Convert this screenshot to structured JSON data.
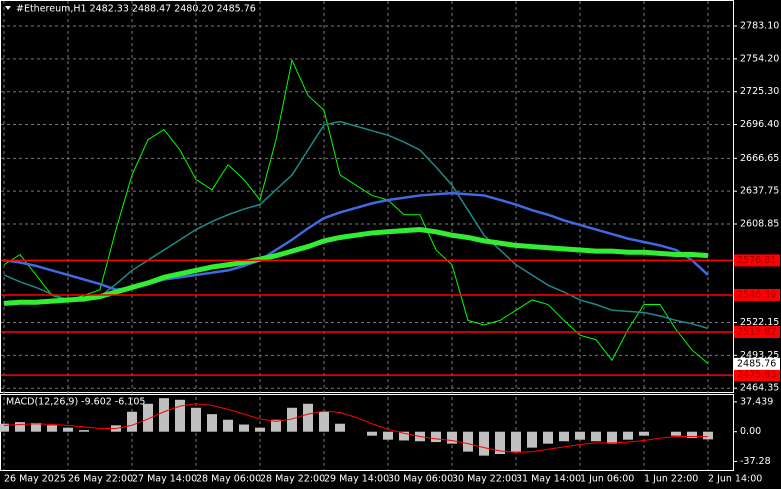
{
  "chart_data": [
    {
      "type": "line",
      "title": "#Ethereum,H1  2482.33 2488.47 2480.20 2485.76",
      "categories": [
        "26 May 2025",
        null,
        null,
        null,
        "26 May 22:00",
        null,
        null,
        null,
        "27 May 14:00",
        null,
        null,
        null,
        "28 May 06:00",
        null,
        null,
        null,
        "28 May 22:00",
        null,
        null,
        null,
        "29 May 14:00",
        null,
        null,
        null,
        "30 May 06:00",
        null,
        null,
        null,
        "30 May 22:00",
        null,
        null,
        null,
        "31 May 14:00",
        null,
        null,
        null,
        "1 Jun 06:00",
        null,
        null,
        null,
        "1 Jun 22:00",
        null,
        null,
        null,
        "2 Jun 14:00"
      ],
      "series": [
        {
          "color": "#00ff00",
          "width": 1,
          "values": [
            2573,
            2582,
            2564,
            2546,
            2542,
            2546,
            2551,
            2604,
            2652,
            2683,
            2692,
            2674,
            2648,
            2639,
            2661,
            2648,
            2630,
            2683,
            2753,
            2722,
            2709,
            2652,
            2643,
            2634,
            2630,
            2617,
            2617,
            2586,
            2573,
            2524,
            2520,
            2524,
            2533,
            2542,
            2538,
            2524,
            2511,
            2507,
            2489,
            2516,
            2538,
            2538,
            2516,
            2498,
            2486
          ]
        },
        {
          "color": "#1e8a8a",
          "width": 1.5,
          "values": [
            2564,
            2558,
            2553,
            2547,
            2542,
            2541,
            2545,
            2556,
            2568,
            2577,
            2586,
            2595,
            2604,
            2611,
            2617,
            2622,
            2626,
            2639,
            2652,
            2674,
            2696,
            2699,
            2695,
            2691,
            2687,
            2681,
            2674,
            2659,
            2643,
            2621,
            2599,
            2586,
            2573,
            2564,
            2555,
            2549,
            2542,
            2538,
            2533,
            2532,
            2531,
            2528,
            2524,
            2521,
            2517
          ]
        },
        {
          "color": "#4169e1",
          "width": 2.5,
          "values": [
            2577,
            2575,
            2572,
            2568,
            2564,
            2560,
            2556,
            2551,
            2553,
            2556,
            2560,
            2562,
            2564,
            2566,
            2568,
            2572,
            2577,
            2586,
            2595,
            2605,
            2614,
            2619,
            2623,
            2627,
            2630,
            2632,
            2634,
            2635,
            2636,
            2635,
            2634,
            2630,
            2626,
            2621,
            2617,
            2612,
            2608,
            2604,
            2600,
            2596,
            2593,
            2590,
            2586,
            2577,
            2564
          ]
        },
        {
          "color": "#32ee32",
          "width": 5,
          "values": [
            2539,
            2540,
            2540,
            2541,
            2542,
            2543,
            2545,
            2549,
            2553,
            2557,
            2562,
            2565,
            2568,
            2571,
            2573,
            2575,
            2578,
            2581,
            2585,
            2589,
            2594,
            2597,
            2599,
            2601,
            2602,
            2603,
            2604,
            2602,
            2599,
            2597,
            2594,
            2592,
            2590,
            2589,
            2588,
            2587,
            2586,
            2585,
            2585,
            2584,
            2584,
            2583,
            2582,
            2582,
            2581
          ]
        }
      ],
      "ylim": [
        2461,
        2806
      ],
      "yticks": [
        {
          "value": 2783.1,
          "label": "2783.10"
        },
        {
          "value": 2754.2,
          "label": "2754.20"
        },
        {
          "value": 2725.3,
          "label": "2725.30"
        },
        {
          "value": 2696.4,
          "label": "2696.40"
        },
        {
          "value": 2666.65,
          "label": "2666.65"
        },
        {
          "value": 2637.75,
          "label": "2637.75"
        },
        {
          "value": 2608.85,
          "label": "2608.85"
        },
        {
          "value": 2522.15,
          "label": "2522.15"
        },
        {
          "value": 2493.25,
          "label": "2493.25"
        },
        {
          "value": 2464.35,
          "label": "2464.35"
        }
      ],
      "levels": [
        2576.81,
        2546.39,
        2513.82,
        2475.83
      ],
      "level_color": "#ff0000",
      "current_price": 2485.76,
      "grid": true
    },
    {
      "type": "macd",
      "title": "MACD(12,26,9) -9.602 -6.105",
      "histogram": {
        "color": "#c0c0c0",
        "values": [
          10,
          12,
          11,
          8,
          5,
          2,
          0,
          8,
          25,
          35,
          42,
          40,
          30,
          22,
          15,
          9,
          5,
          15,
          30,
          35,
          25,
          10,
          0,
          -5,
          -10,
          -11,
          -12,
          -13,
          -15,
          -25,
          -30,
          -28,
          -25,
          -20,
          -15,
          -12,
          -10,
          -12,
          -15,
          -10,
          -5,
          0,
          -5,
          -8,
          -9.602
        ]
      },
      "signal": {
        "color": "#ff0000",
        "values": [
          8,
          9,
          10,
          9,
          8,
          6,
          4,
          4,
          8,
          16,
          25,
          32,
          35,
          33,
          28,
          22,
          16,
          13,
          16,
          22,
          26,
          24,
          18,
          10,
          3,
          -2,
          -6,
          -9,
          -11,
          -15,
          -20,
          -24,
          -26,
          -25,
          -22,
          -19,
          -16,
          -14,
          -14,
          -13,
          -11,
          -8,
          -6,
          -6,
          -6.105
        ]
      },
      "ylim": [
        -48,
        46
      ],
      "yticks": [
        37.439,
        {
          "value": 0,
          "label": "0.00"
        },
        -37.28
      ]
    }
  ]
}
